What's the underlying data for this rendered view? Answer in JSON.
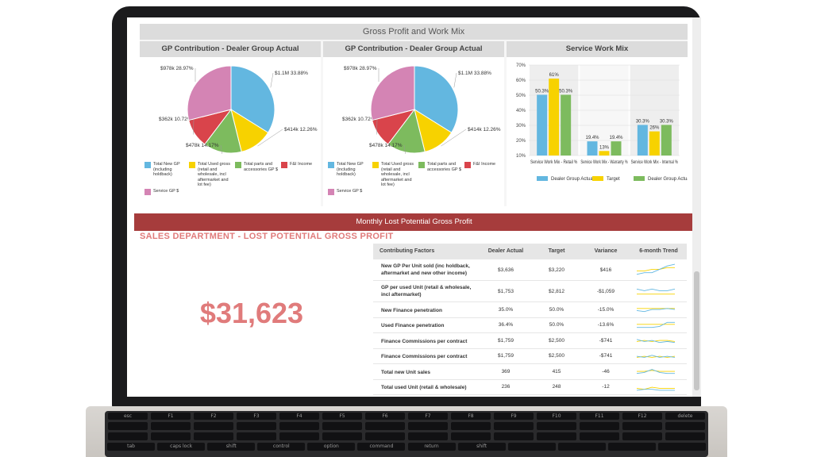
{
  "gp_section": {
    "title": "Gross Profit and Work Mix"
  },
  "colors": {
    "new_gp": "#63b7e0",
    "used_gross": "#f7d200",
    "parts": "#7dbb5e",
    "fi_income": "#d9444b",
    "service_gp": "#d484b4",
    "banner": "#a63c3c",
    "accent_text": "#e07b7b"
  },
  "chart_data": [
    {
      "type": "pie",
      "title": "GP Contribution - Dealer Group Actual",
      "slices": [
        {
          "name": "Total New GP (including holdback)",
          "label": "$1.1M 33.88%",
          "value": 33.88
        },
        {
          "name": "Total Used gross (retail and wholesale, incl aftermarket and lot fee)",
          "label": "$414k 12.26%",
          "value": 12.26
        },
        {
          "name": "Total parts and accessories GP $",
          "label": "$478k 14.17%",
          "value": 14.17
        },
        {
          "name": "F&I Income",
          "label": "$362k 10.72%",
          "value": 10.72
        },
        {
          "name": "Service GP $",
          "label": "$978k 28.97%",
          "value": 28.97
        }
      ]
    },
    {
      "type": "pie",
      "title": "GP Contribution - Dealer Group Actual",
      "slices": [
        {
          "name": "Total New GP (including holdback)",
          "label": "$1.1M 33.88%",
          "value": 33.88
        },
        {
          "name": "Total Used gross (retail and wholesale, incl aftermarket and lot fee)",
          "label": "$414k 12.26%",
          "value": 12.26
        },
        {
          "name": "Total parts and accessories GP $",
          "label": "$478k 14.17%",
          "value": 14.17
        },
        {
          "name": "F&I Income",
          "label": "$362k 10.72%",
          "value": 10.72
        },
        {
          "name": "Service GP $",
          "label": "$978k 28.97%",
          "value": 28.97
        }
      ]
    },
    {
      "type": "bar",
      "title": "Service Work Mix",
      "categories": [
        "Service Work Mix - Retail %",
        "Service Work Mix - Warranty %",
        "Service Work Mix - Internal %"
      ],
      "series": [
        {
          "name": "Dealer Group Actual",
          "values": [
            50.3,
            19.4,
            30.3
          ],
          "labels": [
            "50.3%",
            "19.4%",
            "30.3%"
          ]
        },
        {
          "name": "Target",
          "values": [
            61,
            13,
            26
          ],
          "labels": [
            "61%",
            "13%",
            "26%"
          ]
        },
        {
          "name": "Dealer Group Actual",
          "values": [
            50.3,
            19.4,
            30.3
          ],
          "labels": [
            "50.3%",
            "19.4%",
            "30.3%"
          ]
        }
      ],
      "ylim": [
        10,
        70
      ],
      "yticks": [
        10,
        20,
        30,
        40,
        50,
        60,
        70
      ],
      "ytick_labels": [
        "10%",
        "20%",
        "30%",
        "40%",
        "50%",
        "60%",
        "70%"
      ],
      "grid": true,
      "legend": "bottom"
    }
  ],
  "lost_gp": {
    "banner": "Monthly Lost Potential Gross Profit",
    "title": "SALES DEPARTMENT - LOST POTENTIAL GROSS PROFIT",
    "total": "$31,623",
    "columns": [
      "Contributing Factors",
      "Dealer Actual",
      "Target",
      "Variance",
      "6-month Trend"
    ],
    "rows": [
      {
        "factor": "New GP Per Unit sold (inc holdback, aftermarket and new other income)",
        "actual": "$3,636",
        "target": "$3,220",
        "variance": "$416",
        "trend_a": [
          2,
          3,
          3,
          5,
          7,
          8
        ],
        "trend_b": [
          4,
          4,
          5,
          5,
          6,
          6
        ]
      },
      {
        "factor": "GP per used Unit (retail & wholesale, incl aftermarket)",
        "actual": "$1,753",
        "target": "$2,812",
        "variance": "-$1,059",
        "trend_a": [
          6,
          5,
          6,
          5,
          5,
          6
        ],
        "trend_b": [
          3,
          3,
          3,
          3,
          3,
          3
        ]
      },
      {
        "factor": "New Finance penetration",
        "actual": "35.0%",
        "target": "50.0%",
        "variance": "-15.0%",
        "trend_a": [
          4,
          3,
          5,
          5,
          6,
          5
        ],
        "trend_b": [
          6,
          6,
          6,
          6,
          6,
          6
        ]
      },
      {
        "factor": "Used Finance penetration",
        "actual": "36.4%",
        "target": "50.0%",
        "variance": "-13.6%",
        "trend_a": [
          3,
          3,
          3,
          4,
          8,
          8
        ],
        "trend_b": [
          6,
          6,
          6,
          6,
          6,
          6
        ]
      },
      {
        "factor": "Finance Commissions per contract",
        "actual": "$1,759",
        "target": "$2,500",
        "variance": "-$741",
        "trend_a": [
          6,
          4,
          5,
          3,
          4,
          3
        ],
        "trend_b": [
          4,
          5,
          4,
          5,
          5,
          4
        ]
      },
      {
        "factor": "Finance Commissions per contract",
        "actual": "$1,759",
        "target": "$2,500",
        "variance": "-$741",
        "trend_a": [
          5,
          4,
          6,
          4,
          5,
          4
        ],
        "trend_b": [
          4,
          5,
          4,
          5,
          4,
          5
        ]
      },
      {
        "factor": "Total new Unit sales",
        "actual": "369",
        "target": "415",
        "variance": "-46",
        "trend_a": [
          3,
          4,
          7,
          4,
          3,
          3
        ],
        "trend_b": [
          5,
          5,
          6,
          5,
          5,
          5
        ]
      },
      {
        "factor": "Total used Unit (retail & wholesale)",
        "actual": "236",
        "target": "248",
        "variance": "-12",
        "trend_a": [
          2,
          3,
          3,
          2,
          2,
          2
        ],
        "trend_b": [
          4,
          3,
          5,
          4,
          4,
          4
        ]
      }
    ]
  },
  "keyboard": {
    "keys": [
      "esc",
      "F1",
      "F2",
      "F3",
      "F4",
      "F5",
      "F6",
      "F7",
      "F8",
      "F9",
      "F10",
      "F11",
      "F12",
      "delete",
      "tab",
      "caps lock",
      "shift",
      "control",
      "option",
      "command",
      "return",
      "shift"
    ]
  }
}
